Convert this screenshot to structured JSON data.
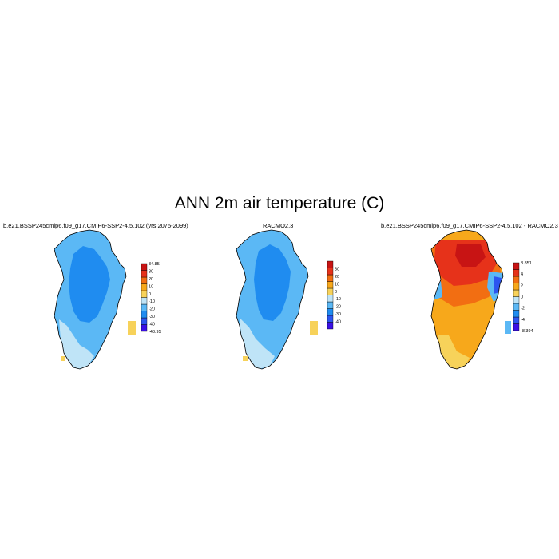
{
  "figure": {
    "title": "ANN 2m air temperature (C)"
  },
  "panels": [
    {
      "id": "model",
      "title": "b.e21.BSSP245cmip6.f09_g17.CMIP6-SSP2-4.5.102 (yrs 2075-2099)",
      "colorbar": {
        "max_label": "34.85",
        "min_label": "-48.95",
        "tick_labels": [
          "30",
          "20",
          "10",
          "0",
          "-10",
          "-20",
          "-30",
          "-40"
        ],
        "colors": [
          "#3b10e6",
          "#2c55f0",
          "#1f8cf0",
          "#5bb8f5",
          "#bfe4f7",
          "#f7d25a",
          "#f7a81b",
          "#f26e12",
          "#e6321a",
          "#c81414"
        ]
      }
    },
    {
      "id": "obs",
      "title": "RACMO2.3",
      "colorbar": {
        "max_label": "",
        "min_label": "",
        "tick_labels": [
          "30",
          "20",
          "10",
          "0",
          "-10",
          "-20",
          "-30",
          "-40"
        ],
        "colors": [
          "#3b10e6",
          "#2c55f0",
          "#1f8cf0",
          "#5bb8f5",
          "#bfe4f7",
          "#f7d25a",
          "#f7a81b",
          "#f26e12",
          "#e6321a",
          "#c81414"
        ]
      }
    },
    {
      "id": "diff",
      "title": "b.e21.BSSP245cmip6.f09_g17.CMIP6-SSP2-4.5.102 - RACMO2.3",
      "colorbar": {
        "max_label": "8.851",
        "min_label": "-8.394",
        "tick_labels": [
          "4",
          "2",
          "0",
          "-2",
          "-4"
        ],
        "colors": [
          "#3b10e6",
          "#2c55f0",
          "#1f8cf0",
          "#5bb8f5",
          "#bfe4f7",
          "#f7d25a",
          "#f7a81b",
          "#f26e12",
          "#e6321a",
          "#c81414"
        ]
      }
    }
  ],
  "map_colors": {
    "ice_interior": "#1f8cf0",
    "ice_mid": "#5bb8f5",
    "coast_cold": "#bfe4f7",
    "coast_warm": "#f7d25a",
    "diff_high": "#e6321a",
    "diff_mid": "#f26e12",
    "diff_low": "#f7a81b",
    "diff_cool": "#5bb8f5",
    "outline": "#000000"
  }
}
